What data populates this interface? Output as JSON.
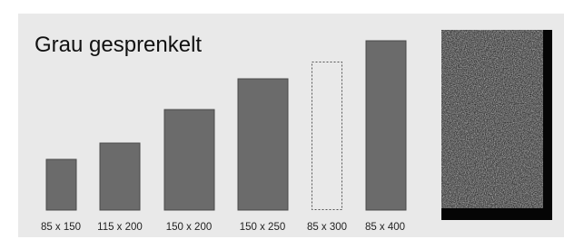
{
  "title": "Grau gesprenkelt",
  "sizes": [
    "85 x 150",
    "115 x 200",
    "150 x 200",
    "150 x 250",
    "85 x 300",
    "85 x 400"
  ]
}
